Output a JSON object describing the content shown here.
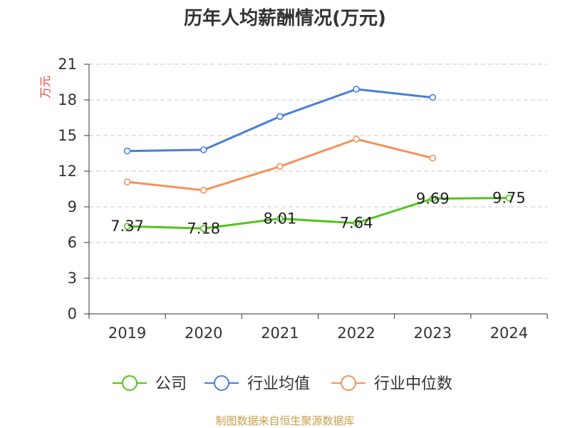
{
  "footer": "制图数据来自恒生聚源数据库",
  "colors": {
    "footer": "#c9a04b",
    "ylabel": "#e8453c",
    "axis": "#333333",
    "grid": "#c8c8c8"
  },
  "chart_data": {
    "type": "line",
    "title": "历年人均薪酬情况(万元)",
    "xlabel": "",
    "ylabel": "万元",
    "categories": [
      "2019",
      "2020",
      "2021",
      "2022",
      "2023",
      "2024"
    ],
    "ylim": [
      0,
      21
    ],
    "yticks": [
      0,
      3,
      6,
      9,
      12,
      15,
      18,
      21
    ],
    "grid": true,
    "legend": "bottom",
    "series": [
      {
        "name": "公司",
        "color": "#52c41a",
        "values": [
          7.37,
          7.18,
          8.01,
          7.64,
          9.69,
          9.75
        ],
        "data_labels": true
      },
      {
        "name": "行业均值",
        "color": "#4a7fd8",
        "values": [
          13.7,
          13.8,
          16.6,
          18.9,
          18.2,
          null
        ],
        "data_labels": false
      },
      {
        "name": "行业中位数",
        "color": "#f4925a",
        "values": [
          11.1,
          10.4,
          12.4,
          14.7,
          13.1,
          null
        ],
        "data_labels": false
      }
    ]
  }
}
